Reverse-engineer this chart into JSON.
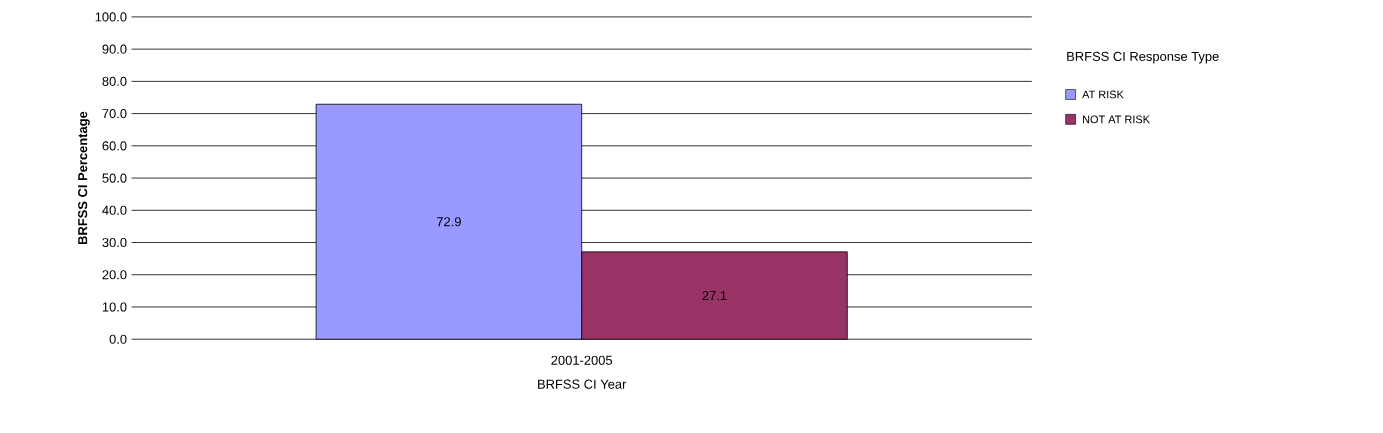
{
  "chart_data": {
    "type": "bar",
    "xlabel": "BRFSS CI Year",
    "ylabel": "BRFSS CI Percentage",
    "legend_title": "BRFSS CI Response Type",
    "categories": [
      "2001-2005"
    ],
    "series": [
      {
        "name": "AT RISK",
        "color": "#9999ff",
        "values": [
          72.9
        ]
      },
      {
        "name": "NOT AT RISK",
        "color": "#993366",
        "values": [
          27.1
        ]
      }
    ],
    "ylim": [
      0,
      100
    ],
    "yticks": [
      {
        "value": 0,
        "label": "0.0"
      },
      {
        "value": 10,
        "label": "10.0"
      },
      {
        "value": 20,
        "label": "20.0"
      },
      {
        "value": 30,
        "label": "30.0"
      },
      {
        "value": 40,
        "label": "40.0"
      },
      {
        "value": 50,
        "label": "50.0"
      },
      {
        "value": 60,
        "label": "60.0"
      },
      {
        "value": 70,
        "label": "70.0"
      },
      {
        "value": 80,
        "label": "80.0"
      },
      {
        "value": 90,
        "label": "90.0"
      },
      {
        "value": 100,
        "label": "100.0"
      }
    ],
    "grid": "y",
    "legend": "top right",
    "data_labels": true
  }
}
